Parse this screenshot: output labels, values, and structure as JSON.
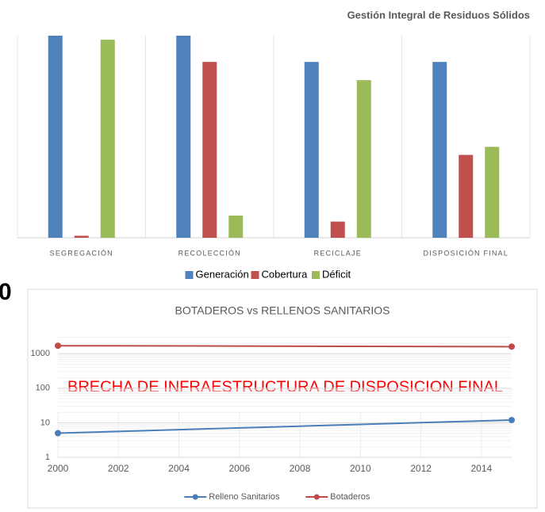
{
  "side_text": "0",
  "chart_data": [
    {
      "type": "bar",
      "title": "Gestión Integral de Residuos Sólidos",
      "categories": [
        "SEGREGACIÓN",
        "RECOLECCIÓN",
        "RECICLAJE",
        "DISPOSICIÓN FINAL"
      ],
      "series": [
        {
          "name": "Generación",
          "color": "#4f81bd",
          "values": [
            100,
            100,
            87,
            87
          ]
        },
        {
          "name": "Cobertura",
          "color": "#c0504d",
          "values": [
            1,
            87,
            8,
            41
          ]
        },
        {
          "name": "Déficit",
          "color": "#9bbb59",
          "values": [
            98,
            11,
            78,
            45
          ]
        }
      ],
      "ylim": [
        0,
        100
      ],
      "legend": "bottom"
    },
    {
      "type": "line",
      "title": "BOTADEROS vs RELLENOS SANITARIOS",
      "annotation": "BRECHA DE INFRAESTRUCTURA  DE DISPOSICION FINAL",
      "x": [
        2000,
        2015
      ],
      "series": [
        {
          "name": "Relleno Sanitarios",
          "color": "#4a7ebb",
          "values": [
            5,
            12
          ]
        },
        {
          "name": "Botaderos",
          "color": "#be4b48",
          "values": [
            1700,
            1600
          ]
        }
      ],
      "xlim": [
        2000,
        2015
      ],
      "xticks": [
        2000,
        2002,
        2004,
        2006,
        2008,
        2010,
        2012,
        2014
      ],
      "ylim": [
        1,
        4000
      ],
      "yticks": [
        1,
        10,
        100,
        1000
      ],
      "log_y": true,
      "grid": true,
      "legend": "bottom"
    }
  ]
}
